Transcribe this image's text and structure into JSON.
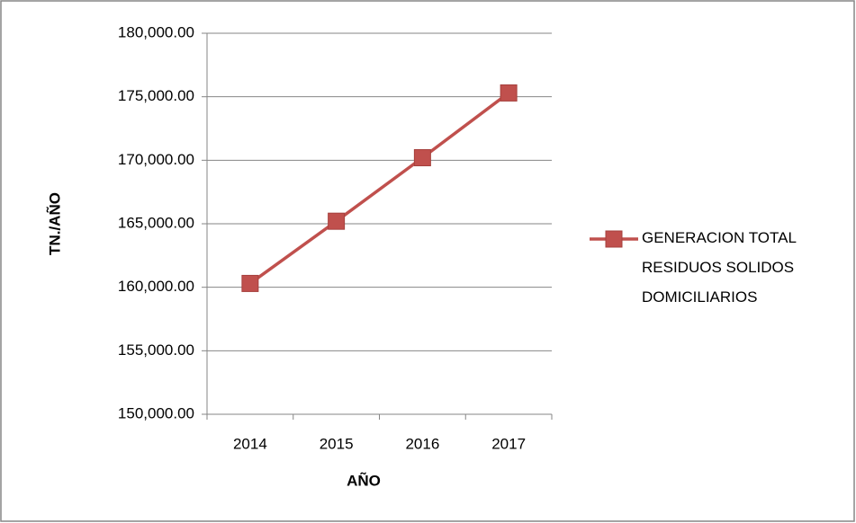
{
  "chart_data": {
    "type": "line",
    "categories": [
      "2014",
      "2015",
      "2016",
      "2017"
    ],
    "series": [
      {
        "name": "GENERACION TOTAL RESIDUOS SOLIDOS DOMICILIARIOS",
        "color": "#c0504d",
        "values": [
          160300,
          165200,
          170200,
          175300
        ]
      }
    ],
    "x_label": "AÑO",
    "y_label": "TN./AÑO",
    "ylim": [
      150000,
      180000
    ],
    "yticks": [
      {
        "value": 150000,
        "label": "150,000.00"
      },
      {
        "value": 155000,
        "label": "155,000.00"
      },
      {
        "value": 160000,
        "label": "160,000.00"
      },
      {
        "value": 165000,
        "label": "165,000.00"
      },
      {
        "value": 170000,
        "label": "170,000.00"
      },
      {
        "value": 175000,
        "label": "175,000.00"
      },
      {
        "value": 180000,
        "label": "180,000.00"
      }
    ],
    "grid": true,
    "legend": "right"
  }
}
